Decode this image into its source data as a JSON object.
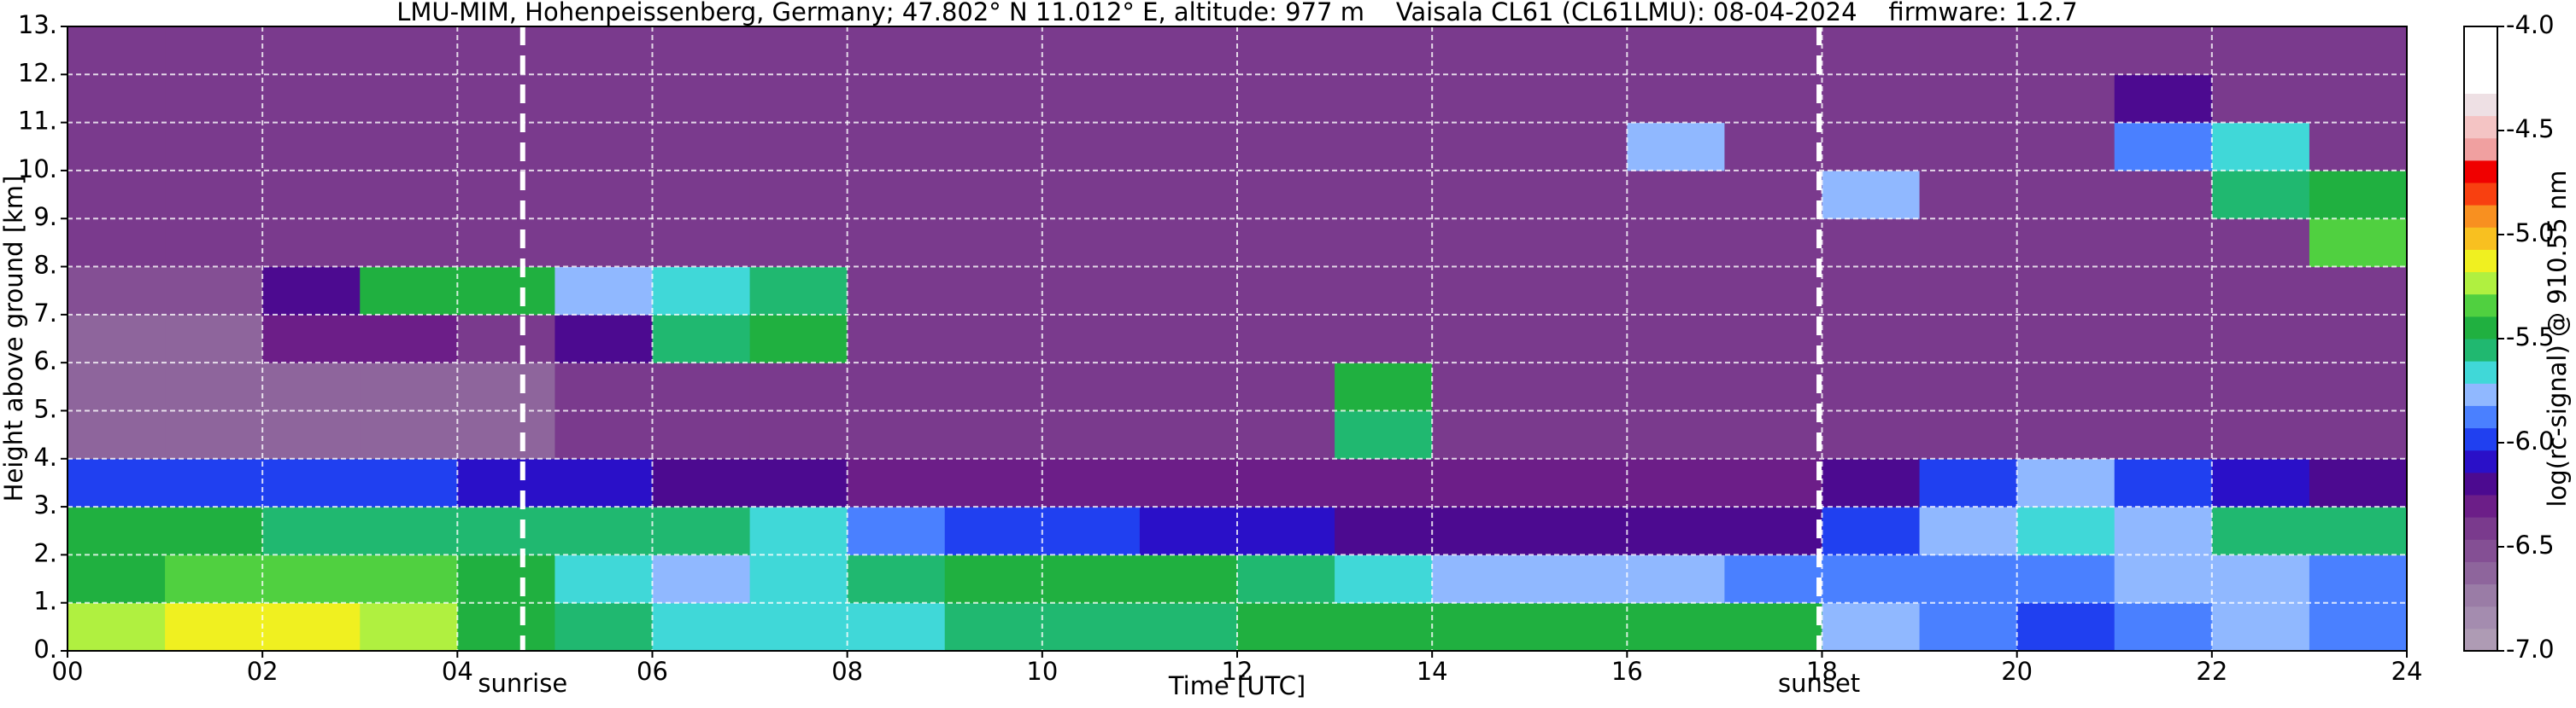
{
  "chart_data": {
    "type": "heatmap",
    "title": "LMU-MIM, Hohenpeissenberg, Germany; 47.802° N 11.012° E, altitude: 977 m    Vaisala CL61 (CL61LMU): 08-04-2024    firmware: 1.2.7",
    "xlabel": "Time [UTC]",
    "ylabel": "Height above ground [km]",
    "colorbar_label": "log(rc-signal) @ 910.55 nm",
    "x": [
      0.5,
      1.5,
      2.5,
      3.5,
      4.5,
      5.5,
      6.5,
      7.5,
      8.5,
      9.5,
      10.5,
      11.5,
      12.5,
      13.5,
      14.5,
      15.5,
      16.5,
      17.5,
      18.5,
      19.5,
      20.5,
      21.5,
      22.5,
      23.5
    ],
    "y": [
      0.5,
      1.5,
      2.5,
      3.5,
      4.5,
      5.5,
      6.5,
      7.5,
      8.5,
      9.5,
      10.5,
      11.5,
      12.5
    ],
    "z": [
      [
        -5.2,
        -5.15,
        -5.1,
        -5.2,
        -5.4,
        -5.6,
        -5.65,
        -5.7,
        -5.65,
        -5.6,
        -5.55,
        -5.55,
        -5.5,
        -5.5,
        -5.45,
        -5.5,
        -5.5,
        -5.45,
        -5.8,
        -5.85,
        -5.95,
        -5.9,
        -5.8,
        -5.85
      ],
      [
        -5.4,
        -5.35,
        -5.3,
        -5.3,
        -5.4,
        -5.7,
        -5.75,
        -5.7,
        -5.55,
        -5.5,
        -5.5,
        -5.5,
        -5.55,
        -5.7,
        -5.75,
        -5.8,
        -5.8,
        -5.85,
        -5.85,
        -5.9,
        -5.85,
        -5.75,
        -5.8,
        -5.85
      ],
      [
        -5.5,
        -5.5,
        -5.55,
        -5.55,
        -5.6,
        -5.55,
        -5.6,
        -5.7,
        -5.9,
        -5.95,
        -6.0,
        -6.05,
        -6.1,
        -6.2,
        -6.2,
        -6.25,
        -6.2,
        -6.15,
        -6.0,
        -5.75,
        -5.7,
        -5.75,
        -5.6,
        -5.6
      ],
      [
        -5.95,
        -6.0,
        -6.0,
        -6.0,
        -6.05,
        -6.1,
        -6.2,
        -6.25,
        -6.3,
        -6.3,
        -6.35,
        -6.35,
        -6.35,
        -6.35,
        -6.35,
        -6.35,
        -6.35,
        -6.3,
        -6.2,
        -6.0,
        -5.8,
        -6.0,
        -6.1,
        -6.15
      ],
      [
        -6.6,
        -6.6,
        -6.6,
        -6.6,
        -6.6,
        -6.4,
        -6.4,
        -6.4,
        -6.4,
        -6.4,
        -6.4,
        -6.4,
        -6.4,
        -5.6,
        -6.4,
        -6.4,
        -6.4,
        -6.4,
        -6.4,
        -6.4,
        -6.4,
        -6.4,
        -6.4,
        -6.4
      ],
      [
        -6.6,
        -6.6,
        -6.6,
        -6.6,
        -6.6,
        -6.4,
        -6.4,
        -6.4,
        -6.4,
        -6.4,
        -6.4,
        -6.4,
        -6.4,
        -5.5,
        -6.4,
        -6.4,
        -6.4,
        -6.4,
        -6.4,
        -6.4,
        -6.4,
        -6.4,
        -6.4,
        -6.4
      ],
      [
        -6.6,
        -6.6,
        -6.3,
        -6.3,
        -6.4,
        -6.2,
        -5.6,
        -5.4,
        -6.4,
        -6.4,
        -6.4,
        -6.4,
        -6.4,
        -6.4,
        -6.4,
        -6.4,
        -6.4,
        -6.4,
        -6.4,
        -6.4,
        -6.4,
        -6.4,
        -6.4,
        -6.4
      ],
      [
        -6.55,
        -6.55,
        -6.2,
        -5.4,
        -5.5,
        -5.8,
        -5.7,
        -5.6,
        -6.4,
        -6.4,
        -6.4,
        -6.4,
        -6.4,
        -6.4,
        -6.4,
        -6.4,
        -6.4,
        -6.4,
        -6.4,
        -6.4,
        -6.4,
        -6.4,
        -6.4,
        -6.4
      ],
      [
        -6.4,
        -6.4,
        -6.4,
        -6.4,
        -6.4,
        -6.4,
        -6.4,
        -6.4,
        -6.4,
        -6.4,
        -6.4,
        -6.4,
        -6.4,
        -6.4,
        -6.4,
        -6.4,
        -6.4,
        -6.4,
        -6.4,
        -6.4,
        -6.4,
        -6.4,
        -6.4,
        -5.3
      ],
      [
        -6.4,
        -6.4,
        -6.4,
        -6.4,
        -6.4,
        -6.4,
        -6.4,
        -6.4,
        -6.4,
        -6.4,
        -6.4,
        -6.4,
        -6.4,
        -6.4,
        -6.4,
        -6.4,
        -6.4,
        -6.4,
        -5.8,
        -6.4,
        -6.4,
        -6.4,
        -5.6,
        -5.5
      ],
      [
        -6.4,
        -6.4,
        -6.4,
        -6.4,
        -6.4,
        -6.4,
        -6.4,
        -6.4,
        -6.4,
        -6.4,
        -6.4,
        -6.4,
        -6.4,
        -6.4,
        -6.4,
        -6.4,
        -5.8,
        -6.4,
        -6.4,
        -6.4,
        -6.4,
        -5.9,
        -5.7,
        -6.4
      ],
      [
        -6.4,
        -6.4,
        -6.4,
        -6.4,
        -6.4,
        -6.4,
        -6.4,
        -6.4,
        -6.4,
        -6.4,
        -6.4,
        -6.4,
        -6.4,
        -6.4,
        -6.4,
        -6.4,
        -6.4,
        -6.4,
        -6.4,
        -6.4,
        -6.4,
        -6.2,
        -6.4,
        -6.4
      ],
      [
        -6.4,
        -6.4,
        -6.4,
        -6.4,
        -6.4,
        -6.4,
        -6.4,
        -6.4,
        -6.4,
        -6.4,
        -6.4,
        -6.4,
        -6.4,
        -6.4,
        -6.4,
        -6.4,
        -6.4,
        -6.4,
        -6.4,
        -6.4,
        -6.4,
        -6.4,
        -6.4,
        -6.4
      ]
    ],
    "xlim": [
      0,
      24
    ],
    "xticks": [
      {
        "value": 0,
        "label": "00"
      },
      {
        "value": 2,
        "label": "02"
      },
      {
        "value": 4,
        "label": "04"
      },
      {
        "value": 6,
        "label": "06"
      },
      {
        "value": 8,
        "label": "08"
      },
      {
        "value": 10,
        "label": "10"
      },
      {
        "value": 12,
        "label": "12"
      },
      {
        "value": 14,
        "label": "14"
      },
      {
        "value": 16,
        "label": "16"
      },
      {
        "value": 18,
        "label": "18"
      },
      {
        "value": 20,
        "label": "20"
      },
      {
        "value": 22,
        "label": "22"
      },
      {
        "value": 24,
        "label": "24"
      }
    ],
    "ylim": [
      0,
      13
    ],
    "yticks": [
      {
        "value": 0,
        "label": "0."
      },
      {
        "value": 1,
        "label": "1."
      },
      {
        "value": 2,
        "label": "2."
      },
      {
        "value": 3,
        "label": "3."
      },
      {
        "value": 4,
        "label": "4."
      },
      {
        "value": 5,
        "label": "5."
      },
      {
        "value": 6,
        "label": "6."
      },
      {
        "value": 7,
        "label": "7."
      },
      {
        "value": 8,
        "label": "8."
      },
      {
        "value": 9,
        "label": "9."
      },
      {
        "value": 10,
        "label": "10."
      },
      {
        "value": 11,
        "label": "11."
      },
      {
        "value": 12,
        "label": "12."
      },
      {
        "value": 13,
        "label": "13."
      }
    ],
    "zlim": [
      -7,
      -4
    ],
    "zticks": [
      {
        "value": -4,
        "label": "-4.0"
      },
      {
        "value": -4.5,
        "label": "-4.5"
      },
      {
        "value": -5,
        "label": "-5.0"
      },
      {
        "value": -5.5,
        "label": "-5.5"
      },
      {
        "value": -6,
        "label": "-6.0"
      },
      {
        "value": -6.5,
        "label": "-6.5"
      },
      {
        "value": -7,
        "label": "-7.0"
      }
    ],
    "colormap": [
      "#ae9bb4",
      "#a48caf",
      "#9a7ca6",
      "#8e659c",
      "#844f94",
      "#7a3a8d",
      "#6c1e88",
      "#4c0a90",
      "#2a10c8",
      "#2040f0",
      "#4a80ff",
      "#90b8ff",
      "#40d8d8",
      "#20b870",
      "#20b040",
      "#50d040",
      "#b0f040",
      "#f0f020",
      "#f8c020",
      "#f89020",
      "#f84010",
      "#f00000",
      "#f0a0a0",
      "#f4c4c4",
      "#eee0e4",
      "#ffffff",
      "#ffffff",
      "#ffffff"
    ],
    "annotations": [
      {
        "label": "sunrise",
        "x": 4.67
      },
      {
        "label": "sunset",
        "x": 17.97
      }
    ],
    "grid": true
  }
}
